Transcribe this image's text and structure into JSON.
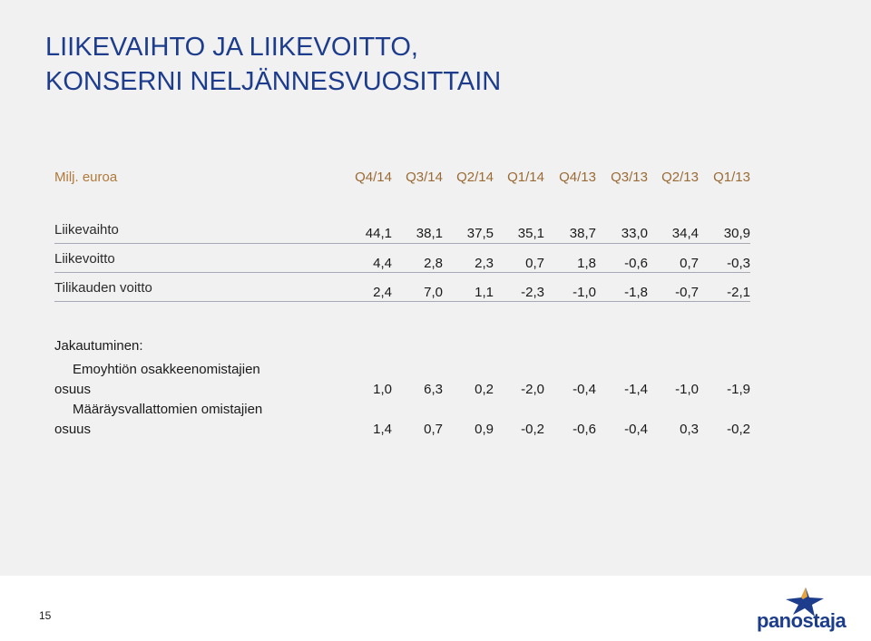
{
  "title": {
    "line1": "LIIKEVAIHTO JA LIIKEVOITTO,",
    "line2": "KONSERNI NELJÄNNESVUOSITTAIN"
  },
  "table": {
    "unit_label": "Milj. euroa",
    "columns": [
      "Q4/14",
      "Q3/14",
      "Q2/14",
      "Q1/14",
      "Q4/13",
      "Q3/13",
      "Q2/13",
      "Q1/13"
    ],
    "rows": [
      {
        "label": "Liikevaihto",
        "values": [
          "44,1",
          "38,1",
          "37,5",
          "35,1",
          "38,7",
          "33,0",
          "34,4",
          "30,9"
        ]
      },
      {
        "label": "Liikevoitto",
        "values": [
          "4,4",
          "2,8",
          "2,3",
          "0,7",
          "1,8",
          "-0,6",
          "0,7",
          "-0,3"
        ]
      },
      {
        "label": "Tilikauden voitto",
        "values": [
          "2,4",
          "7,0",
          "1,1",
          "-2,3",
          "-1,0",
          "-1,8",
          "-0,7",
          "-2,1"
        ]
      }
    ],
    "allocation": {
      "label": "Jakautuminen:",
      "rows": [
        {
          "label_line1": "Emoyhtiön osakkeenomistajien",
          "label_line2": "osuus",
          "values": [
            "1,0",
            "6,3",
            "0,2",
            "-2,0",
            "-0,4",
            "-1,4",
            "-1,0",
            "-1,9"
          ]
        },
        {
          "label_line1": "Määräysvallattomien omistajien",
          "label_line2": "osuus",
          "values": [
            "1,4",
            "0,7",
            "0,9",
            "-0,2",
            "-0,6",
            "-0,4",
            "0,3",
            "-0,2"
          ]
        }
      ]
    }
  },
  "footer": {
    "page_number": "15",
    "logo_text": "panostaja"
  },
  "colors": {
    "title": "#1d3d8c",
    "header": "#9a6b34",
    "background": "#f1f1f2"
  }
}
